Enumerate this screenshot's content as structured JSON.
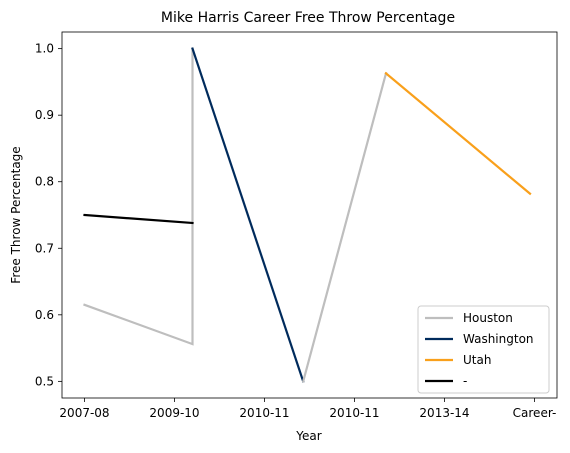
{
  "chart_data": {
    "type": "line",
    "title": "Mike Harris  Career Free Throw Percentage",
    "xlabel": "Year",
    "ylabel": "Free Throw Percentage",
    "x_tick_labels": [
      "2007-08",
      "2009-10",
      "2010-11",
      "2010-11",
      "2013-14",
      "Career-"
    ],
    "y_ticks": [
      0.5,
      0.6,
      0.7,
      0.8,
      0.9,
      1.0
    ],
    "xlim": [
      -0.25,
      5.25
    ],
    "ylim": [
      0.475,
      1.025
    ],
    "grid": false,
    "legend_position": "lower-right",
    "series": [
      {
        "name": "Houston",
        "color": "#bebebe",
        "points": [
          [
            0,
            0.615
          ],
          [
            1.2,
            0.556
          ],
          [
            1.2,
            1.0
          ]
        ]
      },
      {
        "name": "Washington",
        "color": "#002b5c",
        "points": [
          [
            1.2,
            1.0
          ],
          [
            2.43,
            0.5
          ]
        ]
      },
      {
        "name": "Houston",
        "color": "#bebebe",
        "points": [
          [
            2.43,
            0.5
          ],
          [
            3.35,
            0.963
          ]
        ]
      },
      {
        "name": "Utah",
        "color": "#f9a01b",
        "points": [
          [
            3.35,
            0.963
          ],
          [
            4.95,
            0.782
          ]
        ]
      },
      {
        "name": "-",
        "color": "#000000",
        "points": [
          [
            0,
            0.75
          ],
          [
            1.2,
            0.738
          ]
        ]
      }
    ],
    "legend": [
      {
        "label": "Houston",
        "color": "#bebebe"
      },
      {
        "label": "Washington",
        "color": "#002b5c"
      },
      {
        "label": "Utah",
        "color": "#f9a01b"
      },
      {
        "label": "-",
        "color": "#000000"
      }
    ]
  }
}
